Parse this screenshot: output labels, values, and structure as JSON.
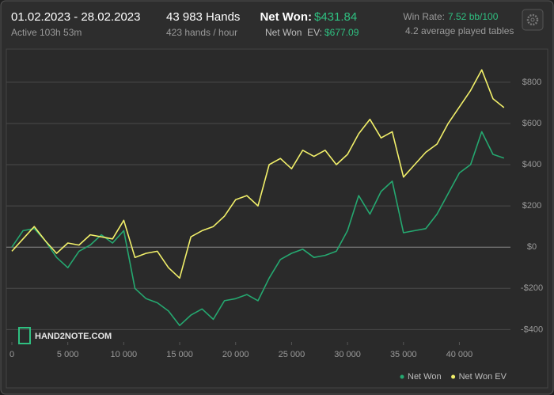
{
  "header": {
    "date_range": "01.02.2023 - 28.02.2023",
    "active": "Active 103h 53m",
    "hands": "43 983 Hands",
    "hands_per_hour": "423 hands / hour",
    "net_won_label": "Net Won:",
    "net_won_value": "$431.84",
    "net_won_ev_label": "Net Won  EV:",
    "net_won_ev_value": "$677.09",
    "win_rate_label": "Win Rate:",
    "win_rate_value": "7.52 bb/100",
    "tables": "4.2 average played tables"
  },
  "logo": "HAND2NOTE.COM",
  "chart_data": {
    "type": "line",
    "x": [
      0,
      1000,
      2000,
      3000,
      4000,
      5000,
      6000,
      7000,
      8000,
      9000,
      10000,
      11000,
      12000,
      13000,
      14000,
      15000,
      16000,
      17000,
      18000,
      19000,
      20000,
      21000,
      22000,
      23000,
      24000,
      25000,
      26000,
      27000,
      28000,
      29000,
      30000,
      31000,
      32000,
      33000,
      34000,
      35000,
      36000,
      37000,
      38000,
      39000,
      40000,
      41000,
      42000,
      43000,
      43983
    ],
    "series": [
      {
        "name": "Net Won",
        "color": "#25a870",
        "values": [
          0,
          80,
          90,
          30,
          -50,
          -100,
          -20,
          10,
          60,
          20,
          80,
          -200,
          -250,
          -270,
          -310,
          -380,
          -330,
          -300,
          -350,
          -260,
          -250,
          -230,
          -260,
          -150,
          -60,
          -30,
          -10,
          -50,
          -40,
          -20,
          80,
          250,
          160,
          270,
          320,
          70,
          80,
          90,
          160,
          260,
          360,
          400,
          560,
          450,
          432
        ]
      },
      {
        "name": "Net Won  EV",
        "color": "#f2f06a",
        "values": [
          -20,
          40,
          100,
          30,
          -30,
          20,
          10,
          60,
          50,
          40,
          130,
          -50,
          -30,
          -20,
          -100,
          -150,
          50,
          80,
          100,
          150,
          230,
          250,
          200,
          400,
          430,
          380,
          470,
          440,
          470,
          400,
          450,
          550,
          620,
          530,
          560,
          340,
          400,
          460,
          500,
          600,
          680,
          760,
          860,
          720,
          677
        ]
      }
    ],
    "xlim": [
      0,
      44000
    ],
    "ylim": [
      -460,
      930
    ],
    "xticks": [
      0,
      {
        "value": 5000,
        "label": "5 000"
      },
      {
        "value": 10000,
        "label": "10 000"
      },
      {
        "value": 15000,
        "label": "15 000"
      },
      {
        "value": 20000,
        "label": "20 000"
      },
      {
        "value": 25000,
        "label": "25 000"
      },
      {
        "value": 30000,
        "label": "30 000"
      },
      {
        "value": 35000,
        "label": "35 000"
      },
      {
        "value": 40000,
        "label": "40 000"
      }
    ],
    "yticks": [
      {
        "value": -400,
        "label": "-$400"
      },
      {
        "value": -200,
        "label": "-$200"
      },
      {
        "value": 0,
        "label": "$0"
      },
      {
        "value": 200,
        "label": "$200"
      },
      {
        "value": 400,
        "label": "$400"
      },
      {
        "value": 600,
        "label": "$600"
      },
      {
        "value": 800,
        "label": "$800"
      }
    ],
    "grid": true
  }
}
